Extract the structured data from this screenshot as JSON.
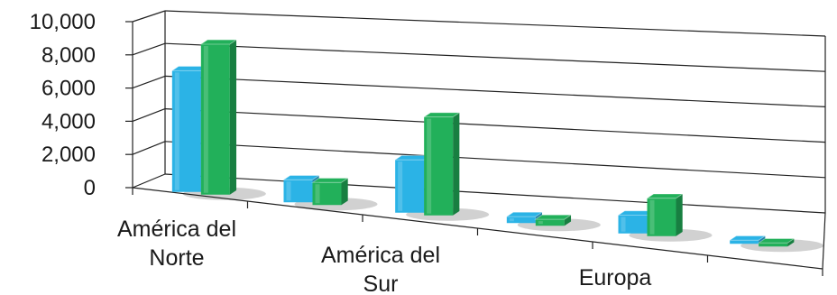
{
  "chart_data": {
    "type": "bar",
    "title": "",
    "xlabel": "",
    "ylabel": "",
    "ylim": [
      0,
      10000
    ],
    "grid": true,
    "style": "3d-perspective",
    "y_ticks": [
      "10,000",
      "8,000",
      "6,000",
      "4,000",
      "2,000",
      "0"
    ],
    "categories": [
      [
        "América del",
        "Norte"
      ],
      [],
      [
        "América del",
        "Sur"
      ],
      [],
      [
        "Europa"
      ],
      []
    ],
    "series": [
      {
        "color": "#2bb3e6",
        "values": [
          7900,
          1500,
          3600,
          450,
          1300,
          50
        ]
      },
      {
        "color": "#22b05a",
        "values": [
          9800,
          1500,
          6700,
          450,
          2700,
          50
        ]
      }
    ]
  }
}
